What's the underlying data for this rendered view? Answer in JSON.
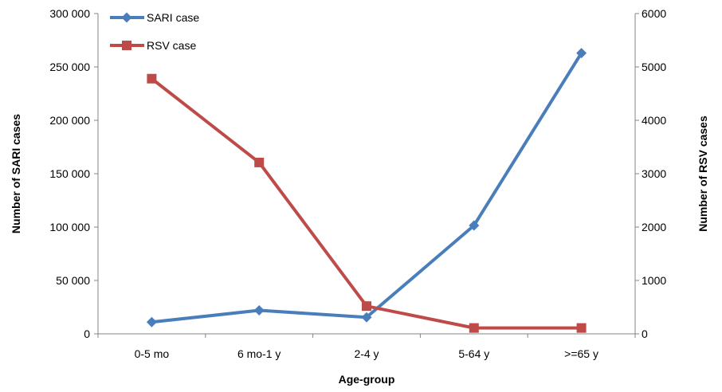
{
  "chart_data": {
    "type": "line",
    "title": "",
    "categories": [
      "0-5 mo",
      "6 mo-1 y",
      "2-4 y",
      "5-64 y",
      ">=65 y"
    ],
    "xlabel": "Age-group",
    "ylabel": "Number of SARI cases",
    "y2label": "Number of RSV cases",
    "ylim": [
      0,
      300000
    ],
    "y2lim": [
      0,
      6000
    ],
    "yticks": [
      0,
      50000,
      100000,
      150000,
      200000,
      250000,
      300000
    ],
    "yticklabels": [
      "0",
      "50 000",
      "100 000",
      "150 000",
      "200 000",
      "250 000",
      "300 000"
    ],
    "y2ticks": [
      0,
      1000,
      2000,
      3000,
      4000,
      5000,
      6000
    ],
    "y2ticklabels": [
      "0",
      "1000",
      "2000",
      "3000",
      "4000",
      "5000",
      "6000"
    ],
    "grid": false,
    "legend_position": "top-left",
    "series": [
      {
        "name": "SARI case",
        "axis": "left",
        "color": "#4a7ebb",
        "marker": "diamond",
        "values": [
          11000,
          22000,
          15500,
          101500,
          263000
        ]
      },
      {
        "name": "RSV case",
        "axis": "right",
        "color": "#be4b48",
        "marker": "square",
        "values": [
          4780,
          3210,
          520,
          110,
          110
        ]
      }
    ]
  }
}
